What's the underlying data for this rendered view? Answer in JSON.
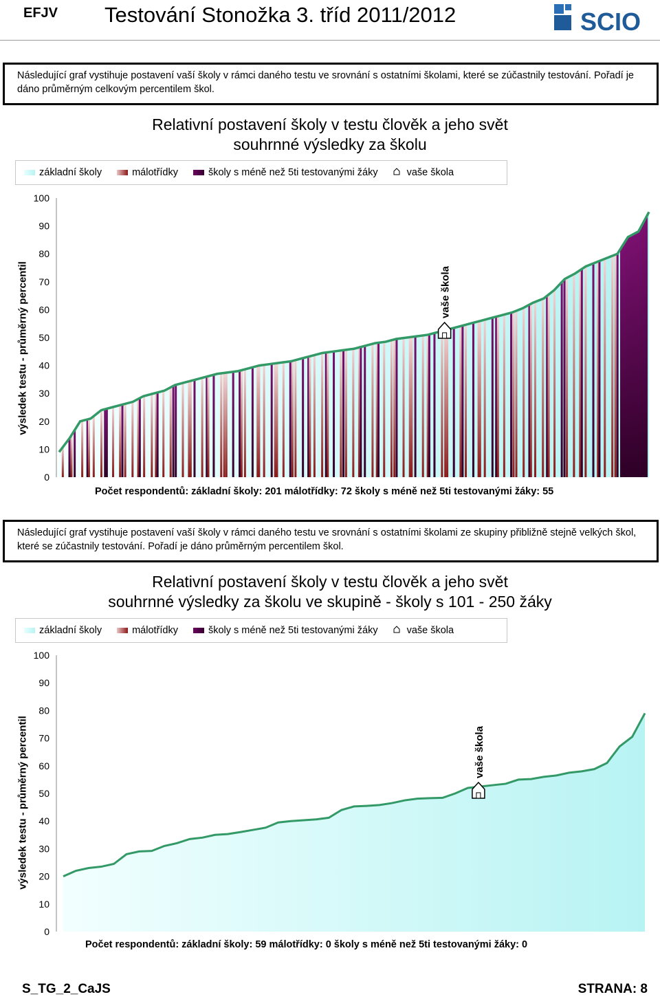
{
  "header": {
    "code": "EFJV",
    "title": "Testování Stonožka 3. tříd 2011/2012",
    "logo_text": "SCIO"
  },
  "legend": {
    "basic": "základní školy",
    "small": "málotřídky",
    "few": "školy s méně než 5ti testovanými žáky",
    "yours": "vaše škola"
  },
  "colors": {
    "basic": "#ccffff",
    "small": "#8b1a1a",
    "few": "#4a0040",
    "line": "#339966"
  },
  "chart1": {
    "intro": "Následující graf vystihuje postavení vaší školy v rámci daného testu ve srovnání s ostatními školami, které se zúčastnily testování. Pořadí je dáno průměrným celkovým percentilem škol.",
    "title_1": "Relativní postavení školy v testu člověk a jeho svět",
    "title_2": "souhrnné výsledky za školu",
    "ylabel": "výsledek testu - průměrný percentil",
    "marker": "vaše škola",
    "count": "Počet respondentů:  základní školy: 201     málotřídky: 72     školy s méně než 5ti testovanými žáky: 55"
  },
  "chart2": {
    "intro": "Následující graf vystihuje postavení vaší školy v rámci daného testu ve srovnání s ostatními školami ze skupiny přibližně stejně velkých škol, které se zúčastnily testování. Pořadí je dáno průměrným percentilem škol.",
    "title_1": "Relativní postavení školy v testu člověk a jeho svět",
    "title_2": "souhrnné výsledky za školu ve skupině - školy s 101 - 250 žáky",
    "ylabel": "výsledek testu - průměrný percentil",
    "marker": "vaše škola",
    "count": "Počet respondentů:  základní školy: 59     málotřídky: 0     školy s méně než 5ti testovanými žáky: 0"
  },
  "footer": {
    "left": "S_TG_2_CaJS",
    "right": "STRANA: 8"
  },
  "chart_data": [
    {
      "type": "area",
      "title": "Relativní postavení školy v testu člověk a jeho svět",
      "ylabel": "výsledek testu - průměrný percentil",
      "ylim": [
        0,
        100
      ],
      "yticks": [
        0,
        10,
        20,
        30,
        40,
        50,
        60,
        70,
        80,
        90,
        100
      ],
      "legend_position": "top",
      "series": [
        {
          "name": "základní školy",
          "count": 201
        },
        {
          "name": "málotřídky",
          "count": 72
        },
        {
          "name": "školy s méně než 5ti testovanými žáky",
          "count": 55
        }
      ],
      "ranked_percentile": [
        9,
        14,
        20,
        21,
        24,
        25,
        26,
        27,
        29,
        30,
        31,
        33,
        34,
        35,
        36,
        37,
        37.5,
        38,
        39,
        40,
        40.5,
        41,
        41.5,
        42.5,
        43.5,
        44.5,
        45,
        45.5,
        46,
        47,
        48,
        48.5,
        49.5,
        50,
        50.5,
        51,
        52,
        53,
        54,
        55,
        56,
        57,
        58,
        59,
        60.5,
        62.5,
        64,
        67,
        71,
        73,
        75.5,
        77,
        78.5,
        80,
        86,
        88,
        95
      ],
      "your_school": {
        "rank_fraction": 0.655,
        "percentile": 51
      }
    },
    {
      "type": "area",
      "title": "Relativní postavení školy v testu člověk a jeho svět",
      "ylabel": "výsledek testu - průměrný percentil",
      "ylim": [
        0,
        100
      ],
      "yticks": [
        0,
        10,
        20,
        30,
        40,
        50,
        60,
        70,
        80,
        90,
        100
      ],
      "legend_position": "top",
      "series": [
        {
          "name": "základní školy",
          "count": 59
        },
        {
          "name": "málotřídky",
          "count": 0
        },
        {
          "name": "školy s méně než 5ti testovanými žáky",
          "count": 0
        }
      ],
      "ranked_percentile": [
        20,
        22,
        23,
        23.5,
        24.5,
        28,
        29,
        29.2,
        31,
        32,
        33.5,
        34,
        35,
        35.3,
        36,
        36.8,
        37.6,
        39.5,
        40,
        40.3,
        40.6,
        41.2,
        44,
        45.3,
        45.5,
        45.8,
        46.5,
        47.5,
        48.1,
        48.3,
        48.4,
        50,
        52,
        52.5,
        53,
        53.5,
        55,
        55.2,
        56,
        56.5,
        57.5,
        58,
        58.8,
        61,
        67,
        70.5,
        79
      ],
      "your_school": {
        "index": 33,
        "percentile": 52
      }
    }
  ]
}
